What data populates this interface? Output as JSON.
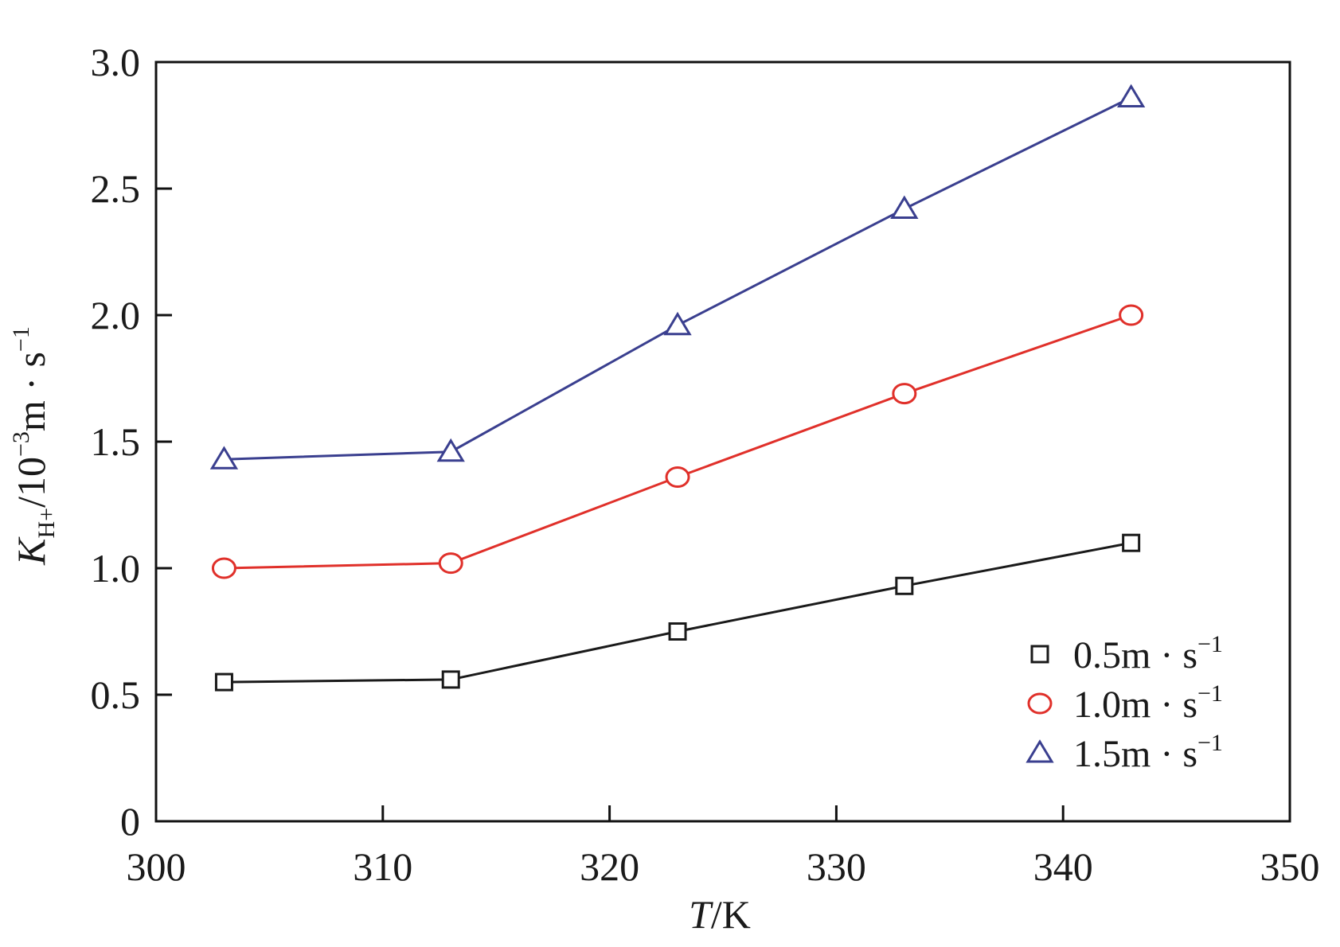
{
  "chart_data": {
    "type": "line",
    "title": "",
    "xlabel": {
      "italic": "T",
      "rest": "/K"
    },
    "ylabel": {
      "italic": "K",
      "sub": "H+",
      "rest": "/10",
      "sup": "−3",
      "tail": "m · s",
      "sup2": "−1"
    },
    "xlim": [
      300,
      350
    ],
    "ylim": [
      0,
      3.0
    ],
    "x_ticks": [
      300,
      310,
      320,
      330,
      340,
      350
    ],
    "x_tick_labels": [
      "300",
      "310",
      "320",
      "330",
      "340",
      "350"
    ],
    "y_ticks": [
      0,
      0.5,
      1.0,
      1.5,
      2.0,
      2.5,
      3.0
    ],
    "y_tick_labels": [
      "0",
      "0.5",
      "1.0",
      "1.5",
      "2.0",
      "2.5",
      "3.0"
    ],
    "x": [
      303,
      313,
      323,
      333,
      343
    ],
    "grid": false,
    "legend_position": "bottom-right",
    "series": [
      {
        "name": "0.5m · s",
        "name_sup": "−1",
        "marker": "square",
        "color": "#1a1a1a",
        "values": [
          0.55,
          0.56,
          0.75,
          0.93,
          1.1
        ]
      },
      {
        "name": "1.0m · s",
        "name_sup": "−1",
        "marker": "circle",
        "color": "#e0302a",
        "values": [
          1.0,
          1.02,
          1.36,
          1.69,
          2.0
        ]
      },
      {
        "name": "1.5m · s",
        "name_sup": "−1",
        "marker": "triangle",
        "color": "#3a3f8f",
        "values": [
          1.43,
          1.46,
          1.96,
          2.42,
          2.86
        ]
      }
    ]
  }
}
